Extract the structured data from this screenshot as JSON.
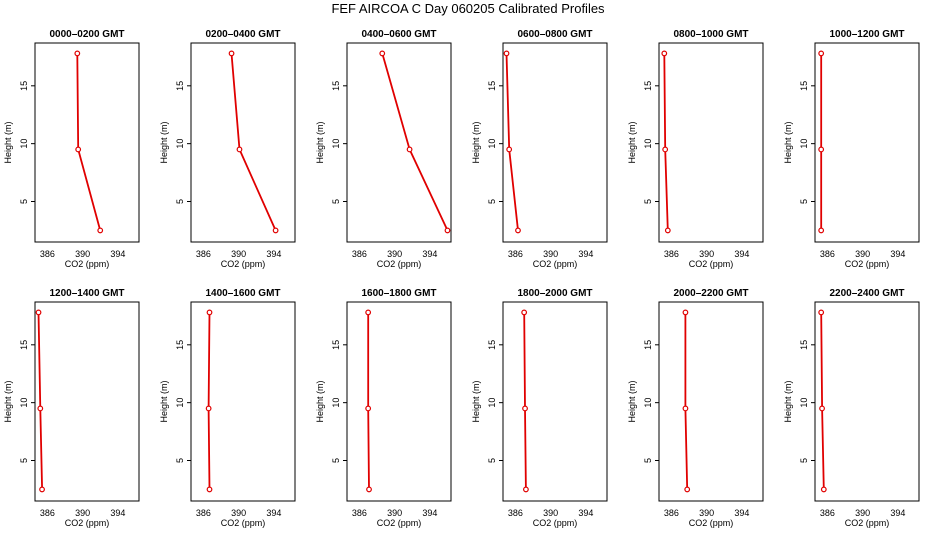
{
  "figure": {
    "title": "FEF AIRCOA C  Day 060205  Calibrated Profiles"
  },
  "colors": {
    "line": "#e00000",
    "marker": "#e00000",
    "axis": "#000000"
  },
  "chart_data": [
    {
      "type": "line",
      "title": "0000–0200 GMT",
      "xlabel": "CO2 (ppm)",
      "ylabel": "Height (m)",
      "xlim": [
        384.6,
        396.4
      ],
      "ylim": [
        1.5,
        18.7
      ],
      "xticks": [
        386,
        390,
        394
      ],
      "yticks": [
        5,
        10,
        15
      ],
      "grid": false,
      "series": [
        {
          "x": [
            389.4,
            389.5,
            392.0
          ],
          "y": [
            17.8,
            9.5,
            2.5
          ]
        }
      ]
    },
    {
      "type": "line",
      "title": "0200–0400 GMT",
      "xlabel": "CO2 (ppm)",
      "ylabel": "Height (m)",
      "xlim": [
        384.6,
        396.4
      ],
      "ylim": [
        1.5,
        18.7
      ],
      "xticks": [
        386,
        390,
        394
      ],
      "yticks": [
        5,
        10,
        15
      ],
      "grid": false,
      "series": [
        {
          "x": [
            389.2,
            390.1,
            394.2
          ],
          "y": [
            17.8,
            9.5,
            2.5
          ]
        }
      ]
    },
    {
      "type": "line",
      "title": "0400–0600 GMT",
      "xlabel": "CO2 (ppm)",
      "ylabel": "Height (m)",
      "xlim": [
        384.6,
        396.4
      ],
      "ylim": [
        1.5,
        18.7
      ],
      "xticks": [
        386,
        390,
        394
      ],
      "yticks": [
        5,
        10,
        15
      ],
      "grid": false,
      "series": [
        {
          "x": [
            388.6,
            391.7,
            396.0
          ],
          "y": [
            17.8,
            9.5,
            2.5
          ]
        }
      ]
    },
    {
      "type": "line",
      "title": "0600–0800 GMT",
      "xlabel": "CO2 (ppm)",
      "ylabel": "Height (m)",
      "xlim": [
        384.6,
        396.4
      ],
      "ylim": [
        1.5,
        18.7
      ],
      "xticks": [
        386,
        390,
        394
      ],
      "yticks": [
        5,
        10,
        15
      ],
      "grid": false,
      "series": [
        {
          "x": [
            385.0,
            385.3,
            386.3
          ],
          "y": [
            17.8,
            9.5,
            2.5
          ]
        }
      ]
    },
    {
      "type": "line",
      "title": "0800–1000 GMT",
      "xlabel": "CO2 (ppm)",
      "ylabel": "Height (m)",
      "xlim": [
        384.6,
        396.4
      ],
      "ylim": [
        1.5,
        18.7
      ],
      "xticks": [
        386,
        390,
        394
      ],
      "yticks": [
        5,
        10,
        15
      ],
      "grid": false,
      "series": [
        {
          "x": [
            385.2,
            385.3,
            385.6
          ],
          "y": [
            17.8,
            9.5,
            2.5
          ]
        }
      ]
    },
    {
      "type": "line",
      "title": "1000–1200 GMT",
      "xlabel": "CO2 (ppm)",
      "ylabel": "Height (m)",
      "xlim": [
        384.6,
        396.4
      ],
      "ylim": [
        1.5,
        18.7
      ],
      "xticks": [
        386,
        390,
        394
      ],
      "yticks": [
        5,
        10,
        15
      ],
      "grid": false,
      "series": [
        {
          "x": [
            385.3,
            385.3,
            385.3
          ],
          "y": [
            17.8,
            9.5,
            2.5
          ]
        }
      ]
    },
    {
      "type": "line",
      "title": "1200–1400 GMT",
      "xlabel": "CO2 (ppm)",
      "ylabel": "Height (m)",
      "xlim": [
        384.6,
        396.4
      ],
      "ylim": [
        1.5,
        18.7
      ],
      "xticks": [
        386,
        390,
        394
      ],
      "yticks": [
        5,
        10,
        15
      ],
      "grid": false,
      "series": [
        {
          "x": [
            385.0,
            385.2,
            385.4
          ],
          "y": [
            17.8,
            9.5,
            2.5
          ]
        }
      ]
    },
    {
      "type": "line",
      "title": "1400–1600 GMT",
      "xlabel": "CO2 (ppm)",
      "ylabel": "Height (m)",
      "xlim": [
        384.6,
        396.4
      ],
      "ylim": [
        1.5,
        18.7
      ],
      "xticks": [
        386,
        390,
        394
      ],
      "yticks": [
        5,
        10,
        15
      ],
      "grid": false,
      "series": [
        {
          "x": [
            386.7,
            386.6,
            386.7
          ],
          "y": [
            17.8,
            9.5,
            2.5
          ]
        }
      ]
    },
    {
      "type": "line",
      "title": "1600–1800 GMT",
      "xlabel": "CO2 (ppm)",
      "ylabel": "Height (m)",
      "xlim": [
        384.6,
        396.4
      ],
      "ylim": [
        1.5,
        18.7
      ],
      "xticks": [
        386,
        390,
        394
      ],
      "yticks": [
        5,
        10,
        15
      ],
      "grid": false,
      "series": [
        {
          "x": [
            387.0,
            387.0,
            387.1
          ],
          "y": [
            17.8,
            9.5,
            2.5
          ]
        }
      ]
    },
    {
      "type": "line",
      "title": "1800–2000 GMT",
      "xlabel": "CO2 (ppm)",
      "ylabel": "Height (m)",
      "xlim": [
        384.6,
        396.4
      ],
      "ylim": [
        1.5,
        18.7
      ],
      "xticks": [
        386,
        390,
        394
      ],
      "yticks": [
        5,
        10,
        15
      ],
      "grid": false,
      "series": [
        {
          "x": [
            387.0,
            387.1,
            387.2
          ],
          "y": [
            17.8,
            9.5,
            2.5
          ]
        }
      ]
    },
    {
      "type": "line",
      "title": "2000–2200 GMT",
      "xlabel": "CO2 (ppm)",
      "ylabel": "Height (m)",
      "xlim": [
        384.6,
        396.4
      ],
      "ylim": [
        1.5,
        18.7
      ],
      "xticks": [
        386,
        390,
        394
      ],
      "yticks": [
        5,
        10,
        15
      ],
      "grid": false,
      "series": [
        {
          "x": [
            387.6,
            387.6,
            387.8
          ],
          "y": [
            17.8,
            9.5,
            2.5
          ]
        }
      ]
    },
    {
      "type": "line",
      "title": "2200–2400 GMT",
      "xlabel": "CO2 (ppm)",
      "ylabel": "Height (m)",
      "xlim": [
        384.6,
        396.4
      ],
      "ylim": [
        1.5,
        18.7
      ],
      "xticks": [
        386,
        390,
        394
      ],
      "yticks": [
        5,
        10,
        15
      ],
      "grid": false,
      "series": [
        {
          "x": [
            385.3,
            385.4,
            385.6
          ],
          "y": [
            17.8,
            9.5,
            2.5
          ]
        }
      ]
    }
  ]
}
